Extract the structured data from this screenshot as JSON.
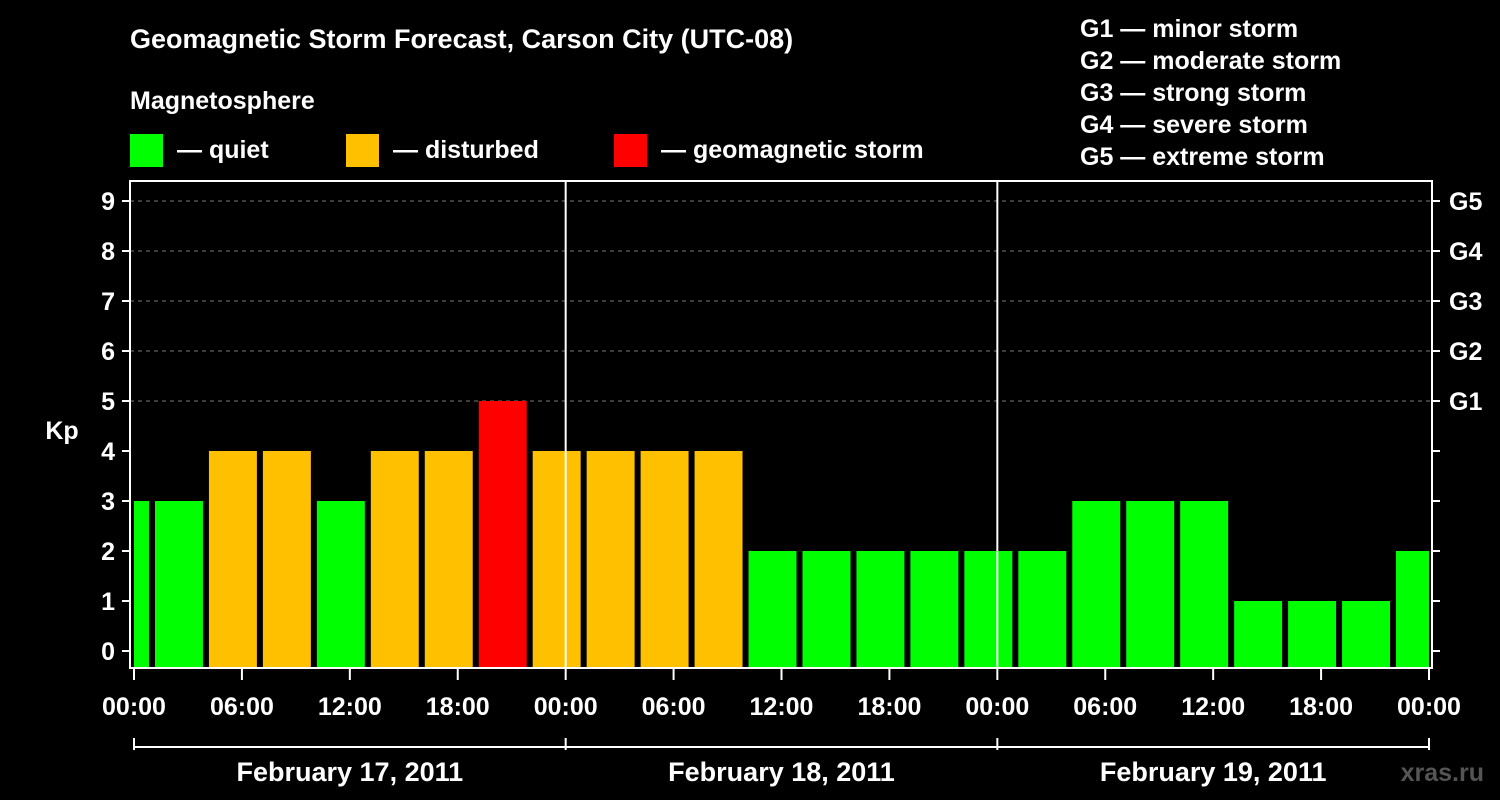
{
  "colors": {
    "quiet": "#00ff00",
    "disturbed": "#ffc000",
    "storm": "#ff0000",
    "background": "#000000",
    "foreground": "#ffffff"
  },
  "chart_data": {
    "type": "bar",
    "title": "Geomagnetic Storm Forecast, Carson City (UTC-08)",
    "subtitle": "Magnetosphere",
    "legend": [
      {
        "key": "quiet",
        "label": "— quiet"
      },
      {
        "key": "disturbed",
        "label": "— disturbed"
      },
      {
        "key": "storm",
        "label": "— geomagnetic storm"
      }
    ],
    "storm_scale": [
      {
        "level": "G1",
        "text": "G1 — minor storm"
      },
      {
        "level": "G2",
        "text": "G2 — moderate storm"
      },
      {
        "level": "G3",
        "text": "G3 — strong storm"
      },
      {
        "level": "G4",
        "text": "G4 — severe storm"
      },
      {
        "level": "G5",
        "text": "G5 — extreme storm"
      }
    ],
    "ylabel": "Kp",
    "ylim": [
      0,
      9
    ],
    "yticks": [
      "0",
      "1",
      "2",
      "3",
      "4",
      "5",
      "6",
      "7",
      "8",
      "9"
    ],
    "right_ticks": [
      {
        "kp": 5,
        "label": "G1"
      },
      {
        "kp": 6,
        "label": "G2"
      },
      {
        "kp": 7,
        "label": "G3"
      },
      {
        "kp": 8,
        "label": "G4"
      },
      {
        "kp": 9,
        "label": "G5"
      }
    ],
    "x_range_hours": [
      0,
      72
    ],
    "xtick_labels": [
      "00:00",
      "06:00",
      "12:00",
      "18:00",
      "00:00",
      "06:00",
      "12:00",
      "18:00",
      "00:00",
      "06:00",
      "12:00",
      "18:00",
      "00:00"
    ],
    "dates": [
      "February 17, 2011",
      "February 18, 2011",
      "February 19, 2011"
    ],
    "bars": [
      {
        "start": 0,
        "end": 1,
        "kp": 3,
        "status": "quiet"
      },
      {
        "start": 1,
        "end": 4,
        "kp": 3,
        "status": "quiet"
      },
      {
        "start": 4,
        "end": 7,
        "kp": 4,
        "status": "disturbed"
      },
      {
        "start": 7,
        "end": 10,
        "kp": 4,
        "status": "disturbed"
      },
      {
        "start": 10,
        "end": 13,
        "kp": 3,
        "status": "quiet"
      },
      {
        "start": 13,
        "end": 16,
        "kp": 4,
        "status": "disturbed"
      },
      {
        "start": 16,
        "end": 19,
        "kp": 4,
        "status": "disturbed"
      },
      {
        "start": 19,
        "end": 22,
        "kp": 5,
        "status": "storm"
      },
      {
        "start": 22,
        "end": 25,
        "kp": 4,
        "status": "disturbed"
      },
      {
        "start": 25,
        "end": 28,
        "kp": 4,
        "status": "disturbed"
      },
      {
        "start": 28,
        "end": 31,
        "kp": 4,
        "status": "disturbed"
      },
      {
        "start": 31,
        "end": 34,
        "kp": 4,
        "status": "disturbed"
      },
      {
        "start": 34,
        "end": 37,
        "kp": 2,
        "status": "quiet"
      },
      {
        "start": 37,
        "end": 40,
        "kp": 2,
        "status": "quiet"
      },
      {
        "start": 40,
        "end": 43,
        "kp": 2,
        "status": "quiet"
      },
      {
        "start": 43,
        "end": 46,
        "kp": 2,
        "status": "quiet"
      },
      {
        "start": 46,
        "end": 49,
        "kp": 2,
        "status": "quiet"
      },
      {
        "start": 49,
        "end": 52,
        "kp": 2,
        "status": "quiet"
      },
      {
        "start": 52,
        "end": 55,
        "kp": 3,
        "status": "quiet"
      },
      {
        "start": 55,
        "end": 58,
        "kp": 3,
        "status": "quiet"
      },
      {
        "start": 58,
        "end": 61,
        "kp": 3,
        "status": "quiet"
      },
      {
        "start": 61,
        "end": 64,
        "kp": 1,
        "status": "quiet"
      },
      {
        "start": 64,
        "end": 67,
        "kp": 1,
        "status": "quiet"
      },
      {
        "start": 67,
        "end": 70,
        "kp": 1,
        "status": "quiet"
      },
      {
        "start": 70,
        "end": 72,
        "kp": 2,
        "status": "quiet"
      }
    ],
    "grid": true,
    "watermark": "xras.ru"
  }
}
